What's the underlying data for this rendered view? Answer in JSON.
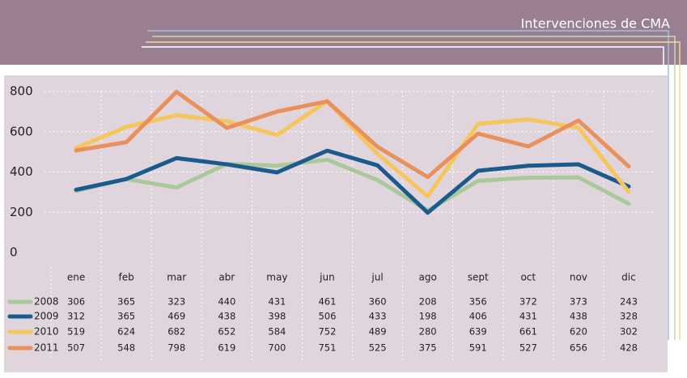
{
  "chart_data": {
    "type": "line",
    "title": "Intervenciones de CMA",
    "categories": [
      "ene",
      "feb",
      "mar",
      "abr",
      "may",
      "jun",
      "jul",
      "ago",
      "sept",
      "oct",
      "nov",
      "dic"
    ],
    "series": [
      {
        "name": "2008",
        "color": "#a9c99b",
        "values": [
          306,
          365,
          323,
          440,
          431,
          461,
          360,
          208,
          356,
          372,
          373,
          243
        ]
      },
      {
        "name": "2009",
        "color": "#1b5a8c",
        "values": [
          312,
          365,
          469,
          438,
          398,
          506,
          433,
          198,
          406,
          431,
          438,
          328
        ]
      },
      {
        "name": "2010",
        "color": "#f6c65c",
        "values": [
          519,
          624,
          682,
          652,
          584,
          752,
          489,
          280,
          639,
          661,
          620,
          302
        ]
      },
      {
        "name": "2011",
        "color": "#e8915c",
        "values": [
          507,
          548,
          798,
          619,
          700,
          751,
          525,
          375,
          591,
          527,
          656,
          428
        ]
      }
    ],
    "ylim": [
      0,
      800
    ],
    "yticks": [
      0,
      200,
      400,
      600,
      800
    ],
    "grid": true
  }
}
